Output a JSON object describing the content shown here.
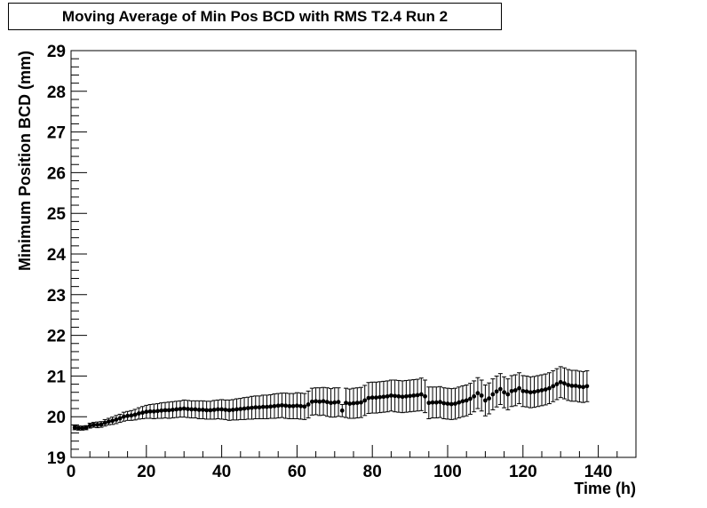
{
  "chart_data": {
    "type": "scatter",
    "title": "Moving Average of Min Pos BCD with RMS T2.4 Run 2",
    "xlabel": "Time (h)",
    "ylabel": "Minimum Position BCD (mm)",
    "xlim": [
      0,
      150
    ],
    "ylim": [
      19,
      29
    ],
    "x_ticks": [
      "0",
      "20",
      "40",
      "60",
      "80",
      "100",
      "120",
      "140"
    ],
    "y_ticks": [
      "19",
      "20",
      "21",
      "22",
      "23",
      "24",
      "25",
      "26",
      "27",
      "28",
      "29"
    ],
    "grid": false,
    "legend": "none",
    "series": [
      {
        "x": [
          1,
          2,
          3,
          4,
          5,
          6,
          7,
          8,
          9,
          10,
          11,
          12,
          13,
          14,
          15,
          16,
          17,
          18,
          19,
          20,
          21,
          22,
          23,
          24,
          25,
          26,
          27,
          28,
          29,
          30,
          31,
          32,
          33,
          34,
          35,
          36,
          37,
          38,
          39,
          40,
          41,
          42,
          43,
          44,
          45,
          46,
          47,
          48,
          49,
          50,
          51,
          52,
          53,
          54,
          55,
          56,
          57,
          58,
          59,
          60,
          61,
          62,
          63,
          64,
          65,
          66,
          67,
          68,
          69,
          70,
          71,
          72,
          73,
          74,
          75,
          76,
          77,
          78,
          79,
          80,
          81,
          82,
          83,
          84,
          85,
          86,
          87,
          88,
          89,
          90,
          91,
          92,
          93,
          94,
          95,
          96,
          97,
          98,
          99,
          100,
          101,
          102,
          103,
          104,
          105,
          106,
          107,
          108,
          109,
          110,
          111,
          112,
          113,
          114,
          115,
          116,
          117,
          118,
          119,
          120,
          121,
          122,
          123,
          124,
          125,
          126,
          127,
          128,
          129,
          130,
          131,
          132,
          133,
          134,
          135,
          136,
          137
        ],
        "y": [
          19.73,
          19.72,
          19.72,
          19.73,
          19.78,
          19.8,
          19.8,
          19.81,
          19.85,
          19.88,
          19.9,
          19.93,
          19.96,
          20.0,
          20.02,
          20.03,
          20.05,
          20.08,
          20.1,
          20.12,
          20.13,
          20.13,
          20.14,
          20.15,
          20.16,
          20.16,
          20.17,
          20.18,
          20.19,
          20.2,
          20.19,
          20.18,
          20.18,
          20.17,
          20.17,
          20.16,
          20.16,
          20.17,
          20.18,
          20.18,
          20.17,
          20.16,
          20.17,
          20.18,
          20.19,
          20.2,
          20.21,
          20.22,
          20.23,
          20.23,
          20.24,
          20.24,
          20.25,
          20.26,
          20.27,
          20.28,
          20.27,
          20.26,
          20.26,
          20.27,
          20.26,
          20.25,
          20.3,
          20.37,
          20.38,
          20.37,
          20.38,
          20.36,
          20.34,
          20.35,
          20.36,
          20.15,
          20.34,
          20.32,
          20.33,
          20.34,
          20.35,
          20.4,
          20.46,
          20.47,
          20.47,
          20.48,
          20.49,
          20.5,
          20.52,
          20.51,
          20.5,
          20.49,
          20.5,
          20.51,
          20.52,
          20.53,
          20.55,
          20.5,
          20.34,
          20.35,
          20.35,
          20.36,
          20.33,
          20.32,
          20.31,
          20.32,
          20.35,
          20.38,
          20.4,
          20.44,
          20.5,
          20.58,
          20.52,
          20.4,
          20.45,
          20.55,
          20.62,
          20.68,
          20.6,
          20.55,
          20.63,
          20.65,
          20.7,
          20.63,
          20.62,
          20.6,
          20.61,
          20.63,
          20.65,
          20.67,
          20.7,
          20.75,
          20.8,
          20.85,
          20.82,
          20.78,
          20.76,
          20.76,
          20.74,
          20.73,
          20.75
        ],
        "err": [
          0.05,
          0.05,
          0.05,
          0.05,
          0.06,
          0.06,
          0.07,
          0.07,
          0.08,
          0.08,
          0.09,
          0.1,
          0.1,
          0.11,
          0.11,
          0.12,
          0.13,
          0.14,
          0.15,
          0.16,
          0.17,
          0.18,
          0.18,
          0.19,
          0.19,
          0.2,
          0.2,
          0.2,
          0.2,
          0.21,
          0.21,
          0.21,
          0.21,
          0.22,
          0.22,
          0.22,
          0.22,
          0.23,
          0.23,
          0.24,
          0.24,
          0.25,
          0.25,
          0.26,
          0.26,
          0.27,
          0.27,
          0.28,
          0.28,
          0.28,
          0.29,
          0.29,
          0.29,
          0.3,
          0.3,
          0.3,
          0.31,
          0.31,
          0.31,
          0.32,
          0.32,
          0.32,
          0.33,
          0.33,
          0.33,
          0.34,
          0.34,
          0.35,
          0.35,
          0.36,
          0.35,
          0.15,
          0.36,
          0.36,
          0.37,
          0.37,
          0.37,
          0.37,
          0.38,
          0.38,
          0.38,
          0.38,
          0.38,
          0.38,
          0.38,
          0.39,
          0.39,
          0.39,
          0.39,
          0.39,
          0.39,
          0.39,
          0.4,
          0.4,
          0.39,
          0.38,
          0.38,
          0.38,
          0.38,
          0.38,
          0.38,
          0.38,
          0.38,
          0.38,
          0.38,
          0.38,
          0.38,
          0.38,
          0.38,
          0.38,
          0.38,
          0.38,
          0.38,
          0.38,
          0.38,
          0.38,
          0.38,
          0.38,
          0.38,
          0.38,
          0.38,
          0.38,
          0.38,
          0.38,
          0.38,
          0.38,
          0.38,
          0.38,
          0.38,
          0.38,
          0.38,
          0.38,
          0.38,
          0.38,
          0.38,
          0.38,
          0.38
        ]
      }
    ]
  }
}
